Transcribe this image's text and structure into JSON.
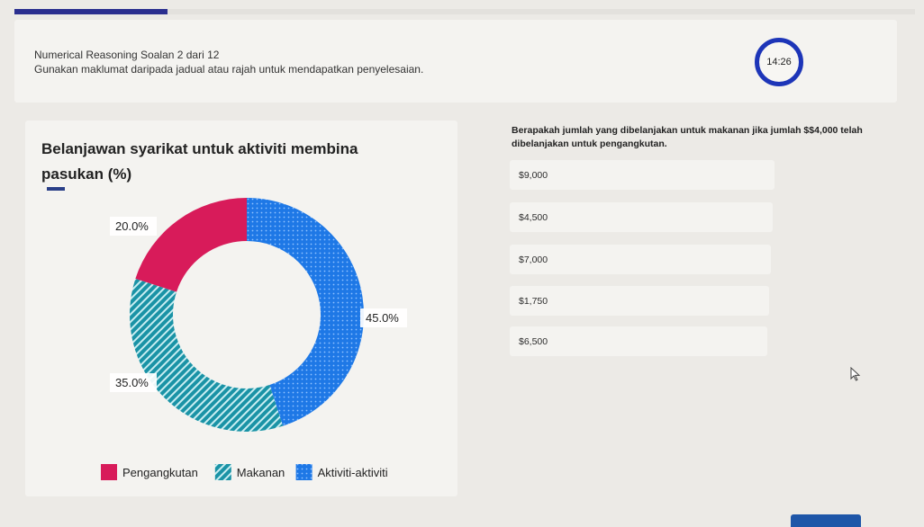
{
  "header": {
    "question_number": "Numerical Reasoning Soalan 2 dari 12",
    "instruction": "Gunakan maklumat daripada jadual atau rajah untuk mendapatkan penyelesaian.",
    "timer": "14:26",
    "progress_fraction": 0.17
  },
  "chart_data": {
    "type": "pie",
    "variant": "donut",
    "title": "Belanjawan syarikat untuk aktiviti membina pasukan (%)",
    "slices": [
      {
        "name": "Pengangkutan",
        "value": 20.0,
        "label": "20.0%",
        "color": "#d81b5a"
      },
      {
        "name": "Makanan",
        "value": 35.0,
        "label": "35.0%",
        "color": "#1a93a6"
      },
      {
        "name": "Aktiviti-aktiviti",
        "value": 45.0,
        "label": "45.0%",
        "color": "#1e78e6"
      }
    ],
    "legend_position": "bottom"
  },
  "question": {
    "text": "Berapakah jumlah yang dibelanjakan untuk makanan jika jumlah $$4,000 telah dibelanjakan untuk pengangkutan.",
    "options": [
      "$9,000",
      "$4,500",
      "$7,000",
      "$1,750",
      "$6,500"
    ]
  },
  "colors": {
    "accent": "#1d35b8",
    "progress": "#2b2f8f"
  }
}
